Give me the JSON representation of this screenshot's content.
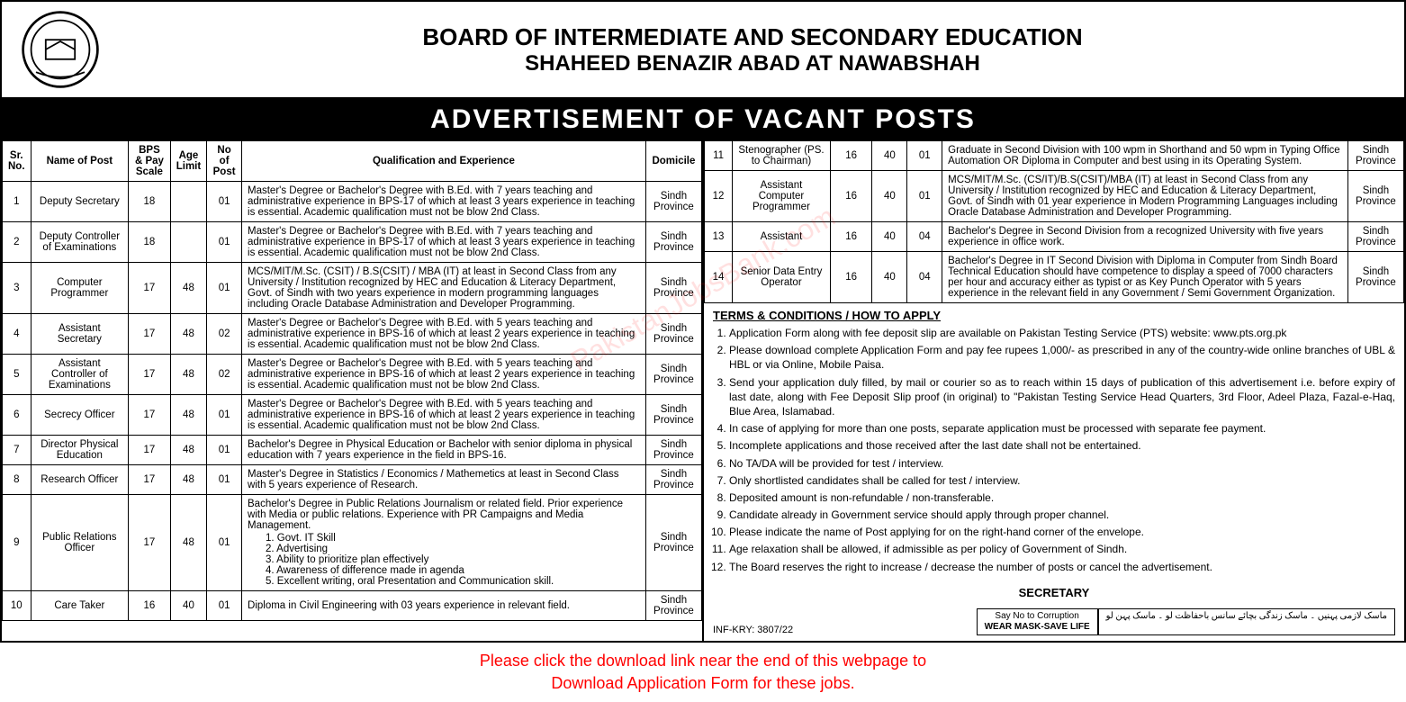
{
  "header": {
    "line1": "BOARD OF INTERMEDIATE AND SECONDARY EDUCATION",
    "line2": "SHAHEED BENAZIR ABAD AT NAWABSHAH",
    "banner": "ADVERTISEMENT OF VACANT POSTS"
  },
  "table": {
    "columns": [
      "Sr. No.",
      "Name of Post",
      "BPS & Pay Scale",
      "Age Limit",
      "No of Post",
      "Qualification and Experience",
      "Domicile"
    ],
    "rows_left": [
      {
        "sr": "1",
        "post": "Deputy Secretary",
        "bps": "18",
        "age": "",
        "num": "01",
        "qual": "Master's Degree or Bachelor's Degree with B.Ed. with 7 years teaching and administrative experience in BPS-17 of which at least 3 years experience in teaching is essential. Academic qualification must not be blow 2nd Class.",
        "dom": "Sindh Province"
      },
      {
        "sr": "2",
        "post": "Deputy Controller of Examinations",
        "bps": "18",
        "age": "",
        "num": "01",
        "qual": "Master's Degree or Bachelor's Degree with B.Ed. with 7 years teaching and administrative experience in BPS-17 of which at least 3 years experience in teaching is essential. Academic qualification must not be blow 2nd Class.",
        "dom": "Sindh Province"
      },
      {
        "sr": "3",
        "post": "Computer Programmer",
        "bps": "17",
        "age": "48",
        "num": "01",
        "qual": "MCS/MIT/M.Sc. (CSIT) / B.S(CSIT) / MBA (IT) at least in Second Class from any University / Institution recognized by HEC and Education & Literacy Department, Govt. of Sindh with two years experience in modern programming languages including Oracle Database Administration and Developer Programming.",
        "dom": "Sindh Province"
      },
      {
        "sr": "4",
        "post": "Assistant Secretary",
        "bps": "17",
        "age": "48",
        "num": "02",
        "qual": "Master's Degree or Bachelor's Degree with B.Ed. with 5 years teaching and administrative experience in BPS-16 of which at least 2 years experience in teaching is essential. Academic qualification must not be blow 2nd Class.",
        "dom": "Sindh Province"
      },
      {
        "sr": "5",
        "post": "Assistant Controller of Examinations",
        "bps": "17",
        "age": "48",
        "num": "02",
        "qual": "Master's Degree or Bachelor's Degree with B.Ed. with 5 years teaching and administrative experience in BPS-16 of which at least 2 years experience in teaching is essential. Academic qualification must not be blow 2nd Class.",
        "dom": "Sindh Province"
      },
      {
        "sr": "6",
        "post": "Secrecy Officer",
        "bps": "17",
        "age": "48",
        "num": "01",
        "qual": "Master's Degree or Bachelor's Degree with B.Ed. with 5 years teaching and administrative experience in BPS-16 of which at least 2 years experience in teaching is essential. Academic qualification must not be blow 2nd Class.",
        "dom": "Sindh Province"
      },
      {
        "sr": "7",
        "post": "Director Physical Education",
        "bps": "17",
        "age": "48",
        "num": "01",
        "qual": "Bachelor's Degree in Physical Education or Bachelor with senior diploma in physical education with 7 years experience in the field in BPS-16.",
        "dom": "Sindh Province"
      },
      {
        "sr": "8",
        "post": "Research Officer",
        "bps": "17",
        "age": "48",
        "num": "01",
        "qual": "Master's Degree in Statistics / Economics / Mathemetics at least in Second Class with 5 years experience of Research.",
        "dom": "Sindh Province"
      },
      {
        "sr": "9",
        "post": "Public Relations Officer",
        "bps": "17",
        "age": "48",
        "num": "01",
        "qual": "Bachelor's Degree in Public Relations Journalism or related field. Prior experience with Media or public relations. Experience with PR Campaigns and Media Management.",
        "qual_list": [
          "Govt. IT Skill",
          "Advertising",
          "Ability to prioritize plan effectively",
          "Awareness of difference made in agenda",
          "Excellent writing, oral Presentation and Communication skill."
        ],
        "dom": "Sindh Province"
      },
      {
        "sr": "10",
        "post": "Care Taker",
        "bps": "16",
        "age": "40",
        "num": "01",
        "qual": "Diploma in Civil Engineering with 03 years experience in relevant field.",
        "dom": "Sindh Province"
      }
    ],
    "rows_right": [
      {
        "sr": "11",
        "post": "Stenographer (PS. to Chairman)",
        "bps": "16",
        "age": "40",
        "num": "01",
        "qual": "Graduate in Second Division with 100 wpm in Shorthand and 50 wpm in Typing Office Automation OR Diploma in Computer and best using in its Operating System.",
        "dom": "Sindh Province"
      },
      {
        "sr": "12",
        "post": "Assistant Computer Programmer",
        "bps": "16",
        "age": "40",
        "num": "01",
        "qual": "MCS/MIT/M.Sc. (CS/IT)/B.S(CSIT)/MBA (IT) at least in Second Class from any University / Institution recognized by HEC and Education & Literacy Department, Govt. of Sindh with 01 year experience in Modern Programming Languages including Oracle Database Administration and Developer Programming.",
        "dom": "Sindh Province"
      },
      {
        "sr": "13",
        "post": "Assistant",
        "bps": "16",
        "age": "40",
        "num": "04",
        "qual": "Bachelor's Degree in Second Division from a recognized University with five years experience in office work.",
        "dom": "Sindh Province"
      },
      {
        "sr": "14",
        "post": "Senior Data Entry Operator",
        "bps": "16",
        "age": "40",
        "num": "04",
        "qual": "Bachelor's Degree in IT Second Division with Diploma in Computer from Sindh Board Technical Education should have competence to display a speed of 7000 characters per hour and accuracy either as typist or as Key Punch Operator with 5 years experience in the relevant field in any Government / Semi Government Organization.",
        "dom": "Sindh Province"
      }
    ]
  },
  "terms": {
    "heading": "TERMS & CONDITIONS / HOW TO APPLY",
    "items": [
      "Application Form along with fee deposit slip are available on Pakistan Testing Service (PTS) website: www.pts.org.pk",
      "Please download complete Application Form and pay fee rupees 1,000/- as prescribed in any of the country-wide online branches of UBL & HBL or via Online, Mobile Paisa.",
      "Send your application duly filled, by mail or courier so as to reach within 15 days of publication of this advertisement i.e. before expiry of last date, along with Fee Deposit Slip proof (in original) to \"Pakistan Testing Service Head Quarters, 3rd Floor, Adeel Plaza, Fazal-e-Haq, Blue Area, Islamabad.",
      "In case of applying for more than one posts, separate application must be processed with separate fee payment.",
      "Incomplete applications and those received after the last date shall not be entertained.",
      "No TA/DA will be provided for test / interview.",
      "Only shortlisted candidates shall be called for test / interview.",
      "Deposited amount is non-refundable / non-transferable.",
      "Candidate already in Government service should apply through proper channel.",
      "Please indicate the name of Post applying for on the right-hand corner of the envelope.",
      "Age relaxation shall be allowed, if admissible as per policy of Government of Sindh.",
      "The Board reserves the right to increase / decrease the number of posts or cancel the advertisement."
    ],
    "secretary": "SECRETARY"
  },
  "footer": {
    "ref": "INF-KRY: 3807/22",
    "box1_line1": "Say No to Corruption",
    "box1_line2": "WEAR MASK-SAVE LIFE",
    "box2": "ماسک لازمی پہنیں ۔ ماسک زندگی بچائے\nسانس باحفاظت لو ۔ ماسک پہن لو"
  },
  "download_note": {
    "line1": "Please click the download link near the end of this webpage to",
    "line2": "Download Application Form for these jobs."
  },
  "watermark": "PakistanJobsBank.com",
  "styling": {
    "border_color": "#000000",
    "banner_bg": "#000000",
    "banner_fg": "#ffffff",
    "note_color": "#ff0000",
    "body_bg": "#ffffff",
    "font_family": "Arial",
    "table_font_size": 11.5,
    "col_widths_left": [
      "4%",
      "14%",
      "6%",
      "5%",
      "5%",
      "58%",
      "8%"
    ],
    "col_widths_right": [
      "4%",
      "14%",
      "6%",
      "5%",
      "5%",
      "58%",
      "8%"
    ]
  }
}
